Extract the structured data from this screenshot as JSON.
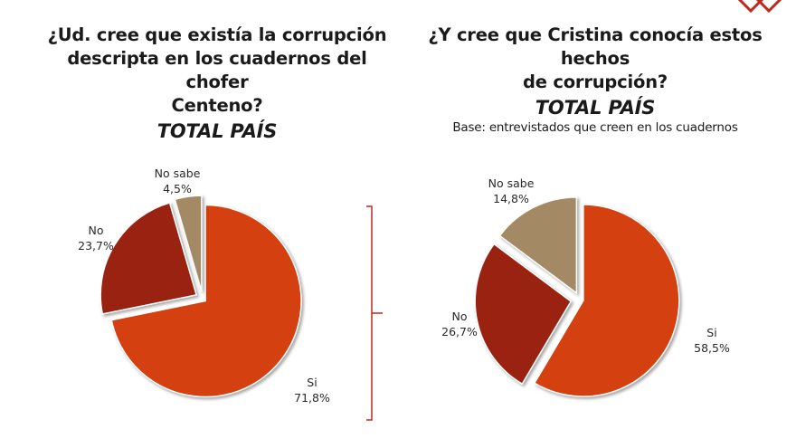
{
  "chart_data": [
    {
      "type": "pie",
      "title": [
        "¿Ud. cree que existía la corrupción",
        "descripta en los cuadernos del chofer",
        "Centeno?"
      ],
      "subtitle": "TOTAL PAÍS",
      "slices": [
        {
          "label": "Si",
          "value": 71.8,
          "value_text": "71,8%",
          "color": "#d4400f"
        },
        {
          "label": "No",
          "value": 23.7,
          "value_text": "23,7%",
          "color": "#9a2210"
        },
        {
          "label": "No sabe",
          "value": 4.5,
          "value_text": "4,5%",
          "color": "#a38a65"
        }
      ]
    },
    {
      "type": "pie",
      "title": [
        "¿Y cree que Cristina conocía estos hechos",
        "de corrupción?"
      ],
      "subtitle": "TOTAL PAÍS",
      "note": "Base: entrevistados que creen en los cuadernos",
      "slices": [
        {
          "label": "Si",
          "value": 58.5,
          "value_text": "58,5%",
          "color": "#d4400f"
        },
        {
          "label": "No",
          "value": 26.7,
          "value_text": "26,7%",
          "color": "#9a2210"
        },
        {
          "label": "No sabe",
          "value": 14.8,
          "value_text": "14,8%",
          "color": "#a38a65"
        }
      ]
    }
  ]
}
